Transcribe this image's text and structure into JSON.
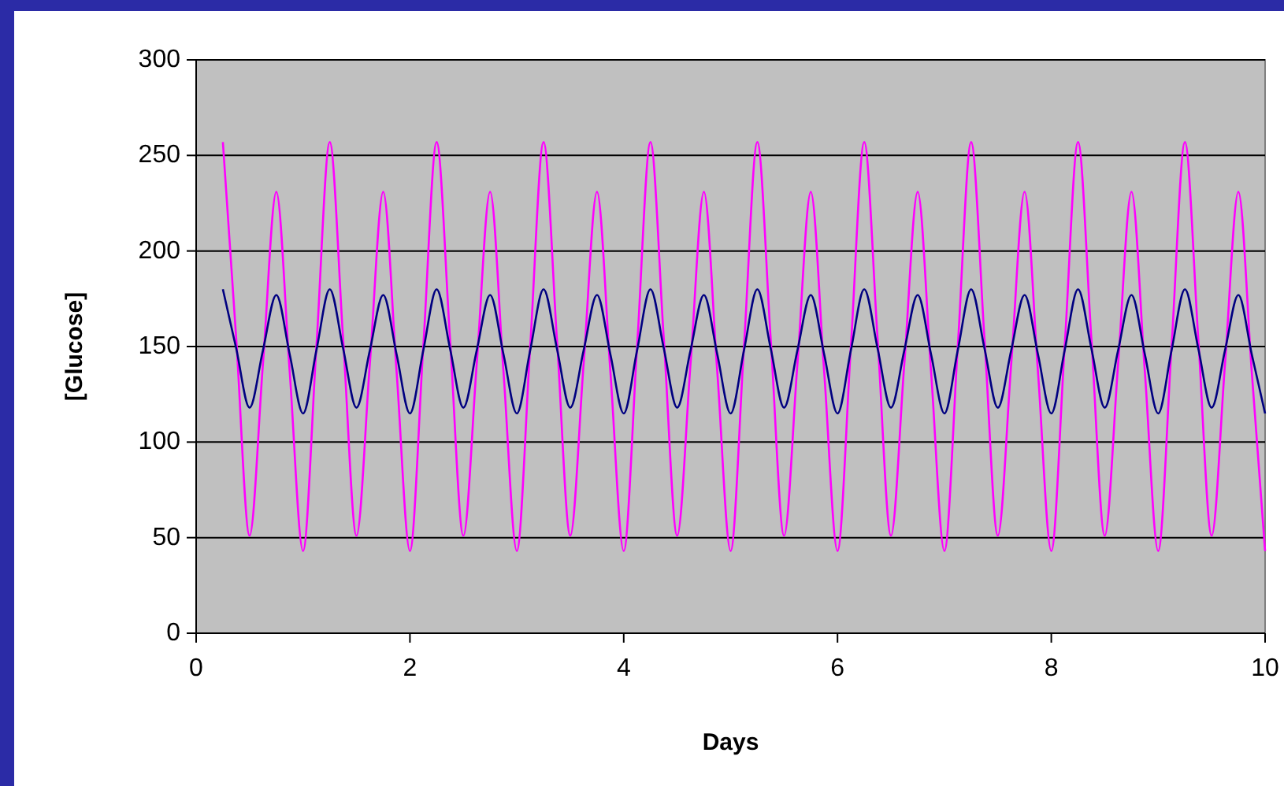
{
  "chart_data": {
    "type": "line",
    "xlabel": "Days",
    "ylabel": "[Glucose]",
    "xlim": [
      0,
      10
    ],
    "xticks": [
      0,
      2,
      4,
      6,
      8,
      10
    ],
    "ylim": [
      0,
      300
    ],
    "yticks": [
      0,
      50,
      100,
      150,
      200,
      250,
      300
    ],
    "grid": "y",
    "x": [
      0.25,
      0.375,
      0.5,
      0.625,
      0.75,
      0.875,
      1,
      1.125,
      1.25,
      1.375,
      1.5,
      1.625,
      1.75,
      1.875,
      2,
      2.125,
      2.25,
      2.375,
      2.5,
      2.625,
      2.75,
      2.875,
      3,
      3.125,
      3.25,
      3.375,
      3.5,
      3.625,
      3.75,
      3.875,
      4,
      4.125,
      4.25,
      4.375,
      4.5,
      4.625,
      4.75,
      4.875,
      5,
      5.125,
      5.25,
      5.375,
      5.5,
      5.625,
      5.75,
      5.875,
      6,
      6.125,
      6.25,
      6.375,
      6.5,
      6.625,
      6.75,
      6.875,
      7,
      7.125,
      7.25,
      7.375,
      7.5,
      7.625,
      7.75,
      7.875,
      8,
      8.125,
      8.25,
      8.375,
      8.5,
      8.625,
      8.75,
      8.875,
      9,
      9.125,
      9.25,
      9.375,
      9.5,
      9.625,
      9.75,
      9.875,
      10
    ],
    "series": [
      {
        "color": "#ff00ff",
        "values": [
          257,
          154,
          51,
          141,
          231,
          137,
          43,
          150,
          257,
          154,
          51,
          141,
          231,
          137,
          43,
          150,
          257,
          154,
          51,
          141,
          231,
          137,
          43,
          150,
          257,
          154,
          51,
          141,
          231,
          137,
          43,
          150,
          257,
          154,
          51,
          141,
          231,
          137,
          43,
          150,
          257,
          154,
          51,
          141,
          231,
          137,
          43,
          150,
          257,
          154,
          51,
          141,
          231,
          137,
          43,
          150,
          257,
          154,
          51,
          141,
          231,
          137,
          43,
          150,
          257,
          154,
          51,
          141,
          231,
          137,
          43,
          150,
          257,
          154,
          51,
          141,
          231,
          137,
          43
        ]
      },
      {
        "color": "#000080",
        "values": [
          180,
          149,
          118,
          148,
          177,
          146,
          115,
          148,
          180,
          149,
          118,
          148,
          177,
          146,
          115,
          148,
          180,
          149,
          118,
          148,
          177,
          146,
          115,
          148,
          180,
          149,
          118,
          148,
          177,
          146,
          115,
          148,
          180,
          149,
          118,
          148,
          177,
          146,
          115,
          148,
          180,
          149,
          118,
          148,
          177,
          146,
          115,
          148,
          180,
          149,
          118,
          148,
          177,
          146,
          115,
          148,
          180,
          149,
          118,
          148,
          177,
          146,
          115,
          148,
          180,
          149,
          118,
          148,
          177,
          146,
          115,
          148,
          180,
          149,
          118,
          148,
          177,
          146,
          115
        ]
      }
    ]
  }
}
